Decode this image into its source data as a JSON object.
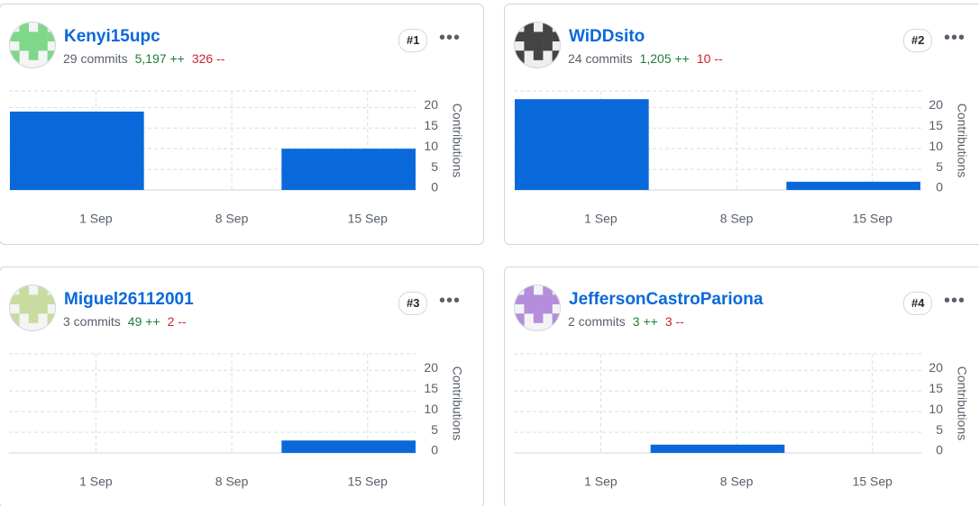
{
  "chart_data": [
    {
      "type": "bar",
      "title": "Kenyi15upc",
      "commits": "29 commits",
      "additions": "5,197 ++",
      "deletions": "326 --",
      "rank": "#1",
      "y_label": "Contributions",
      "categories": [
        null,
        null,
        null
      ],
      "xticks": [
        "1 Sep",
        "8 Sep",
        "15 Sep"
      ],
      "values": [
        19,
        0,
        10
      ],
      "color": "#0969da",
      "ylim": [
        0,
        24
      ],
      "yticks": [
        0,
        5,
        10,
        15,
        20
      ],
      "grid": true
    },
    {
      "type": "bar",
      "title": "WiDDsito",
      "commits": "24 commits",
      "additions": "1,205 ++",
      "deletions": "10 --",
      "rank": "#2",
      "y_label": "Contributions",
      "categories": [
        null,
        null,
        null
      ],
      "xticks": [
        "1 Sep",
        "8 Sep",
        "15 Sep"
      ],
      "values": [
        22,
        0,
        2
      ],
      "color": "#0969da",
      "ylim": [
        0,
        24
      ],
      "yticks": [
        0,
        5,
        10,
        15,
        20
      ],
      "grid": true
    },
    {
      "type": "bar",
      "title": "Miguel26112001",
      "commits": "3 commits",
      "additions": "49 ++",
      "deletions": "2 --",
      "rank": "#3",
      "y_label": "Contributions",
      "categories": [
        null,
        null,
        null
      ],
      "xticks": [
        "1 Sep",
        "8 Sep",
        "15 Sep"
      ],
      "values": [
        0,
        0,
        3
      ],
      "color": "#0969da",
      "ylim": [
        0,
        24
      ],
      "yticks": [
        0,
        5,
        10,
        15,
        20
      ],
      "grid": true
    },
    {
      "type": "bar",
      "title": "JeffersonCastroPariona",
      "commits": "2 commits",
      "additions": "3 ++",
      "deletions": "3 --",
      "rank": "#4",
      "y_label": "Contributions",
      "categories": [
        null,
        null,
        null
      ],
      "xticks": [
        "1 Sep",
        "8 Sep",
        "15 Sep"
      ],
      "values": [
        0,
        2,
        0
      ],
      "color": "#0969da",
      "ylim": [
        0,
        24
      ],
      "yticks": [
        0,
        5,
        10,
        15,
        20
      ],
      "grid": true
    }
  ]
}
